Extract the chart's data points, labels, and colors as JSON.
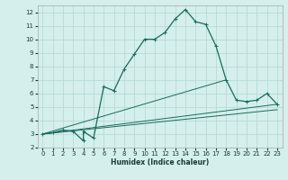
{
  "xlabel": "Humidex (Indice chaleur)",
  "background_color": "#d4efec",
  "grid_color": "#b2d8d4",
  "line_color": "#1a6b5a",
  "xlim": [
    -0.5,
    23.5
  ],
  "ylim": [
    2,
    12.5
  ],
  "xticks": [
    0,
    1,
    2,
    3,
    4,
    5,
    6,
    7,
    8,
    9,
    10,
    11,
    12,
    13,
    14,
    15,
    16,
    17,
    18,
    19,
    20,
    21,
    22,
    23
  ],
  "yticks": [
    2,
    3,
    4,
    5,
    6,
    7,
    8,
    9,
    10,
    11,
    12
  ],
  "series1_x": [
    0,
    1,
    2,
    3,
    4,
    4,
    5,
    6,
    7,
    8,
    9,
    10,
    11,
    12,
    13,
    14,
    15,
    16,
    17,
    18,
    19,
    20,
    21,
    22,
    23
  ],
  "series1_y": [
    3.0,
    3.1,
    3.3,
    3.2,
    2.5,
    3.2,
    2.7,
    6.5,
    6.2,
    7.8,
    8.9,
    10.0,
    10.0,
    10.5,
    11.5,
    12.2,
    11.3,
    11.1,
    9.5,
    7.0,
    5.5,
    5.4,
    5.5,
    6.0,
    5.2
  ],
  "series2_x": [
    0,
    18
  ],
  "series2_y": [
    3.0,
    7.0
  ],
  "series3_x": [
    0,
    23
  ],
  "series3_y": [
    3.0,
    5.2
  ],
  "series4_x": [
    0,
    23
  ],
  "series4_y": [
    3.0,
    4.8
  ]
}
